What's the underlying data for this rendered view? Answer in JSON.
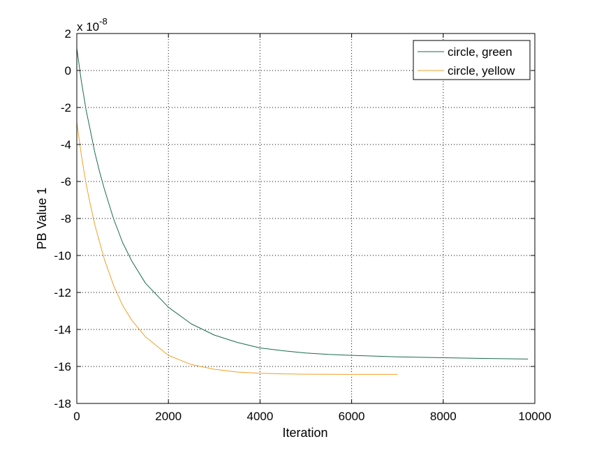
{
  "chart_data": {
    "type": "line",
    "title": "",
    "xlabel": "Iteration",
    "ylabel": "PB Value 1",
    "exponent_label": {
      "base": "x 10",
      "power": "-8"
    },
    "xlim": [
      0,
      10000
    ],
    "ylim": [
      -18,
      2
    ],
    "xticks": [
      0,
      2000,
      4000,
      6000,
      8000,
      10000
    ],
    "yticks": [
      -18,
      -16,
      -14,
      -12,
      -10,
      -8,
      -6,
      -4,
      -2,
      0,
      2
    ],
    "grid": true,
    "legend_position": "top-right",
    "series": [
      {
        "name": "circle, green",
        "color": "#1a6b4c",
        "x": [
          0,
          100,
          200,
          300,
          400,
          500,
          600,
          800,
          1000,
          1200,
          1500,
          2000,
          2500,
          3000,
          3500,
          4000,
          4500,
          5000,
          5500,
          6000,
          7000,
          8000,
          9000,
          9850
        ],
        "y": [
          1.2,
          -0.6,
          -2.1,
          -3.3,
          -4.5,
          -5.5,
          -6.4,
          -8.0,
          -9.3,
          -10.3,
          -11.5,
          -12.8,
          -13.7,
          -14.3,
          -14.7,
          -15.0,
          -15.15,
          -15.27,
          -15.35,
          -15.4,
          -15.48,
          -15.53,
          -15.57,
          -15.6
        ]
      },
      {
        "name": "circle, yellow",
        "color": "#f0a028",
        "x": [
          0,
          100,
          200,
          300,
          400,
          500,
          600,
          800,
          1000,
          1200,
          1500,
          2000,
          2500,
          3000,
          3500,
          4000,
          4500,
          5000,
          6000,
          7000
        ],
        "y": [
          -2.8,
          -4.6,
          -6.1,
          -7.3,
          -8.4,
          -9.3,
          -10.2,
          -11.6,
          -12.7,
          -13.5,
          -14.4,
          -15.4,
          -15.9,
          -16.15,
          -16.3,
          -16.37,
          -16.4,
          -16.42,
          -16.43,
          -16.43
        ]
      }
    ]
  }
}
